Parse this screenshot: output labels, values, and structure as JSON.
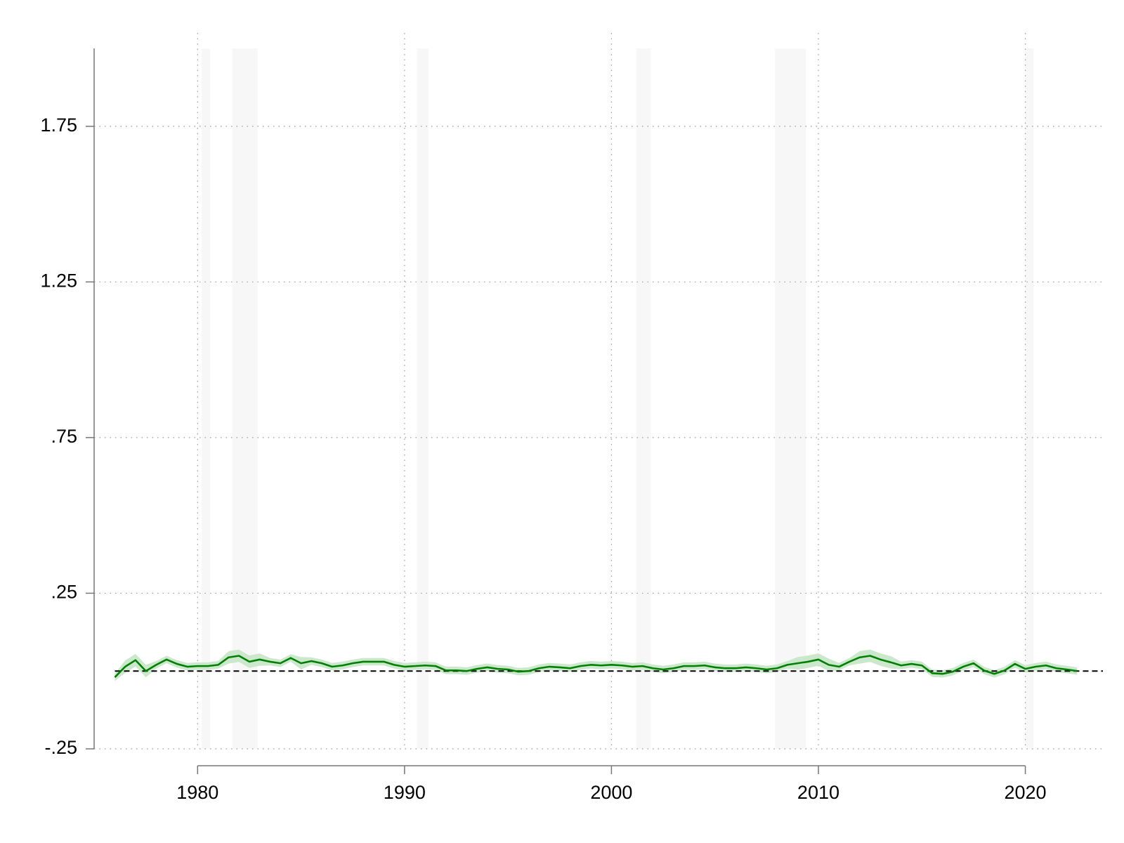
{
  "chart_data": {
    "type": "line",
    "x": [
      1976.0,
      1976.5,
      1977.0,
      1977.5,
      1978.0,
      1978.5,
      1979.0,
      1979.5,
      1980.0,
      1980.5,
      1981.0,
      1981.5,
      1982.0,
      1982.5,
      1983.0,
      1983.5,
      1984.0,
      1984.5,
      1985.0,
      1985.5,
      1986.0,
      1986.5,
      1987.0,
      1987.5,
      1988.0,
      1988.5,
      1989.0,
      1989.5,
      1990.0,
      1990.5,
      1991.0,
      1991.5,
      1992.0,
      1992.5,
      1993.0,
      1993.5,
      1994.0,
      1994.5,
      1995.0,
      1995.5,
      1996.0,
      1996.5,
      1997.0,
      1997.5,
      1998.0,
      1998.5,
      1999.0,
      1999.5,
      2000.0,
      2000.5,
      2001.0,
      2001.5,
      2002.0,
      2002.5,
      2003.0,
      2003.5,
      2004.0,
      2004.5,
      2005.0,
      2005.5,
      2006.0,
      2006.5,
      2007.0,
      2007.5,
      2008.0,
      2008.5,
      2009.0,
      2009.5,
      2010.0,
      2010.5,
      2011.0,
      2011.5,
      2012.0,
      2012.5,
      2013.0,
      2013.5,
      2014.0,
      2014.5,
      2015.0,
      2015.5,
      2016.0,
      2016.5,
      2017.0,
      2017.5,
      2018.0,
      2018.5,
      2019.0,
      2019.5,
      2020.0,
      2020.5,
      2021.0,
      2021.5,
      2022.0,
      2022.5
    ],
    "values": [
      -0.02,
      0.014,
      0.035,
      0.0,
      0.02,
      0.037,
      0.023,
      0.014,
      0.016,
      0.016,
      0.02,
      0.044,
      0.049,
      0.03,
      0.037,
      0.03,
      0.025,
      0.042,
      0.025,
      0.032,
      0.025,
      0.014,
      0.018,
      0.025,
      0.03,
      0.03,
      0.03,
      0.02,
      0.014,
      0.016,
      0.018,
      0.016,
      0.002,
      0.002,
      0,
      0.007,
      0.012,
      0.007,
      0.005,
      -0.002,
      0,
      0.009,
      0.014,
      0.012,
      0.009,
      0.016,
      0.02,
      0.018,
      0.02,
      0.018,
      0.014,
      0.016,
      0.009,
      0.005,
      0.009,
      0.016,
      0.016,
      0.018,
      0.012,
      0.009,
      0.009,
      0.012,
      0.009,
      0.005,
      0.009,
      0.02,
      0.025,
      0.03,
      0.037,
      0.02,
      0.014,
      0.03,
      0.044,
      0.049,
      0.037,
      0.028,
      0.018,
      0.023,
      0.018,
      -0.007,
      -0.009,
      -0.002,
      0.014,
      0.025,
      0.002,
      -0.009,
      0.002,
      0.023,
      0.007,
      0.014,
      0.018,
      0.009,
      0.005,
      0
    ],
    "color": "#008000",
    "band": {
      "color": "#cce8cc",
      "lower": [
        -0.032,
        -0.006,
        0.015,
        -0.02,
        0.008,
        0.025,
        0.011,
        0.002,
        0.004,
        0.004,
        0.008,
        0.024,
        0.029,
        0.01,
        0.017,
        0.018,
        0.013,
        0.03,
        0.005,
        0.02,
        0.013,
        0.002,
        0.006,
        0.013,
        0.018,
        0.018,
        0.018,
        0.008,
        0.002,
        0.004,
        0.006,
        0.004,
        -0.01,
        -0.01,
        -0.012,
        -0.005,
        0,
        -0.005,
        -0.007,
        -0.014,
        -0.012,
        -0.003,
        0.002,
        0,
        -0.003,
        0.004,
        0.008,
        0.006,
        0.008,
        0.006,
        0.002,
        0.004,
        -0.003,
        -0.007,
        -0.003,
        0.004,
        0.004,
        0.006,
        0,
        -0.003,
        -0.003,
        0,
        -0.003,
        -0.007,
        -0.003,
        0.008,
        0.005,
        0.01,
        0.017,
        0,
        0.002,
        0.018,
        0.024,
        0.029,
        0.017,
        0.008,
        0.006,
        0.011,
        0.006,
        -0.019,
        -0.021,
        -0.014,
        0.002,
        0.013,
        -0.01,
        -0.021,
        -0.01,
        0.011,
        -0.005,
        0.002,
        0.006,
        -0.003,
        -0.007,
        -0.012
      ],
      "upper": [
        -0.008,
        0.034,
        0.055,
        0.02,
        0.032,
        0.049,
        0.035,
        0.026,
        0.028,
        0.028,
        0.032,
        0.064,
        0.069,
        0.05,
        0.057,
        0.042,
        0.037,
        0.054,
        0.045,
        0.044,
        0.037,
        0.026,
        0.03,
        0.037,
        0.042,
        0.042,
        0.042,
        0.032,
        0.026,
        0.028,
        0.03,
        0.028,
        0.014,
        0.014,
        0.012,
        0.019,
        0.024,
        0.019,
        0.017,
        0.01,
        0.012,
        0.021,
        0.026,
        0.024,
        0.021,
        0.028,
        0.032,
        0.03,
        0.032,
        0.03,
        0.026,
        0.028,
        0.021,
        0.017,
        0.021,
        0.028,
        0.028,
        0.03,
        0.024,
        0.021,
        0.021,
        0.024,
        0.021,
        0.017,
        0.021,
        0.032,
        0.045,
        0.05,
        0.057,
        0.04,
        0.026,
        0.042,
        0.064,
        0.069,
        0.057,
        0.048,
        0.03,
        0.035,
        0.03,
        0.005,
        0.003,
        0.01,
        0.026,
        0.037,
        0.014,
        0.003,
        0.014,
        0.035,
        0.019,
        0.026,
        0.03,
        0.021,
        0.017,
        0.012
      ]
    },
    "shaded_periods": [
      [
        1980.2,
        1980.6
      ],
      [
        1981.67,
        1982.9
      ],
      [
        1990.6,
        1991.15
      ],
      [
        2001.2,
        2001.9
      ],
      [
        2007.9,
        2009.4
      ],
      [
        2020.0,
        2020.4
      ]
    ],
    "shade_color": "#f7f7f7",
    "reference_line": 0,
    "xlim": [
      1975,
      2023.75
    ],
    "xticks": [
      1980,
      1990,
      2000,
      2010,
      2020
    ],
    "ylim": [
      -0.25,
      2.0
    ],
    "yticks": [
      {
        "value": -0.25,
        "label": "-.25"
      },
      {
        "value": 0.25,
        "label": ".25"
      },
      {
        "value": 0.75,
        "label": ".75"
      },
      1.25,
      1.75
    ],
    "grid": true
  }
}
